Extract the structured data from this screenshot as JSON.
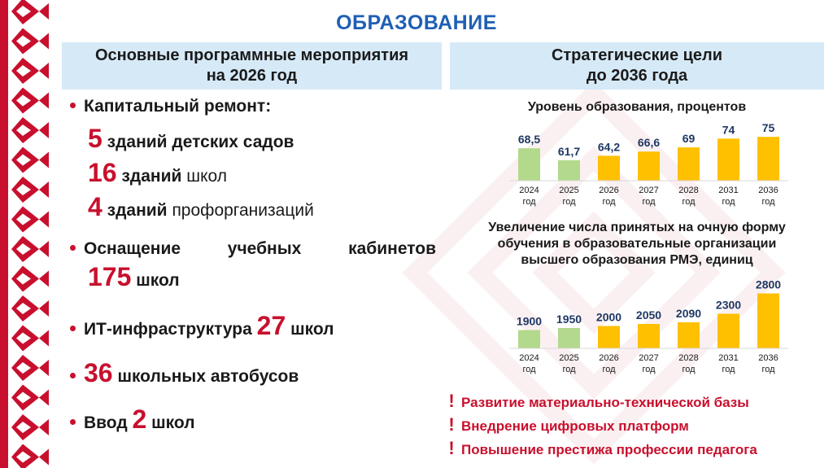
{
  "page": {
    "title": "ОБРАЗОВАНИЕ"
  },
  "left_panel": {
    "header_line1": "Основные программные мероприятия",
    "header_line2": "на 2026 год",
    "repair": {
      "label": "Капитальный ремонт:",
      "items": [
        {
          "number": "5",
          "bold_text": "зданий детских садов",
          "normal_text": ""
        },
        {
          "number": "16",
          "bold_text": "зданий",
          "normal_text": "школ"
        },
        {
          "number": "4",
          "bold_text": "зданий",
          "normal_text": "профорганизаций"
        }
      ]
    },
    "equipment": {
      "word1": "Оснащение",
      "word2": "учебных",
      "word3": "кабинетов",
      "number": "175",
      "unit": "школ"
    },
    "it": {
      "label": "ИТ-инфраструктура",
      "number": "27",
      "unit": "школ"
    },
    "buses": {
      "number": "36",
      "text": "школьных автобусов"
    },
    "intro": {
      "label": "Ввод",
      "number": "2",
      "unit": "школ"
    }
  },
  "right_panel": {
    "header_line1": "Стратегические цели",
    "header_line2": "до 2036 года",
    "chart1_title": "Уровень образования, процентов",
    "chart2_title_line1": "Увеличение числа принятых на очную форму",
    "chart2_title_line2": "обучения в образовательные организации",
    "chart2_title_line3": "высшего образования РМЭ, единиц",
    "goals": [
      "Развитие материально-технической базы",
      "Внедрение цифровых платформ",
      "Повышение престижа профессии педагога"
    ]
  },
  "chart_data": [
    {
      "type": "bar",
      "title": "Уровень образования, процентов",
      "categories": [
        "2024",
        "2025",
        "2026",
        "2027",
        "2028",
        "2031",
        "2036"
      ],
      "category_suffix": "год",
      "values": [
        68.5,
        61.7,
        64.2,
        66.6,
        69,
        74,
        75
      ],
      "labels": [
        "68,5",
        "61,7",
        "64,2",
        "66,6",
        "69",
        "74",
        "75"
      ],
      "colors": [
        "#b3d98c",
        "#b3d98c",
        "#ffc000",
        "#ffc000",
        "#ffc000",
        "#ffc000",
        "#ffc000"
      ],
      "ylim": [
        50,
        76
      ]
    },
    {
      "type": "bar",
      "title": "Увеличение числа принятых на очную форму обучения в образовательные организации высшего образования РМЭ, единиц",
      "categories": [
        "2024",
        "2025",
        "2026",
        "2027",
        "2028",
        "2031",
        "2036"
      ],
      "category_suffix": "год",
      "values": [
        1900,
        1950,
        2000,
        2050,
        2090,
        2300,
        2800
      ],
      "labels": [
        "1900",
        "1950",
        "2000",
        "2050",
        "2090",
        "2300",
        "2800"
      ],
      "colors": [
        "#b3d98c",
        "#b3d98c",
        "#ffc000",
        "#ffc000",
        "#ffc000",
        "#ffc000",
        "#ffc000"
      ],
      "ylim": [
        1450,
        2850
      ]
    }
  ],
  "colors": {
    "accent_red": "#c8102e",
    "title_blue": "#1f5fb4",
    "header_bg": "#d6e9f7",
    "label_navy": "#1f3864"
  }
}
